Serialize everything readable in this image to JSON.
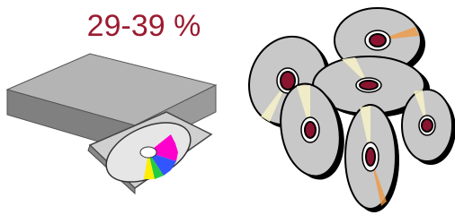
{
  "label": "29-39 %"
}
